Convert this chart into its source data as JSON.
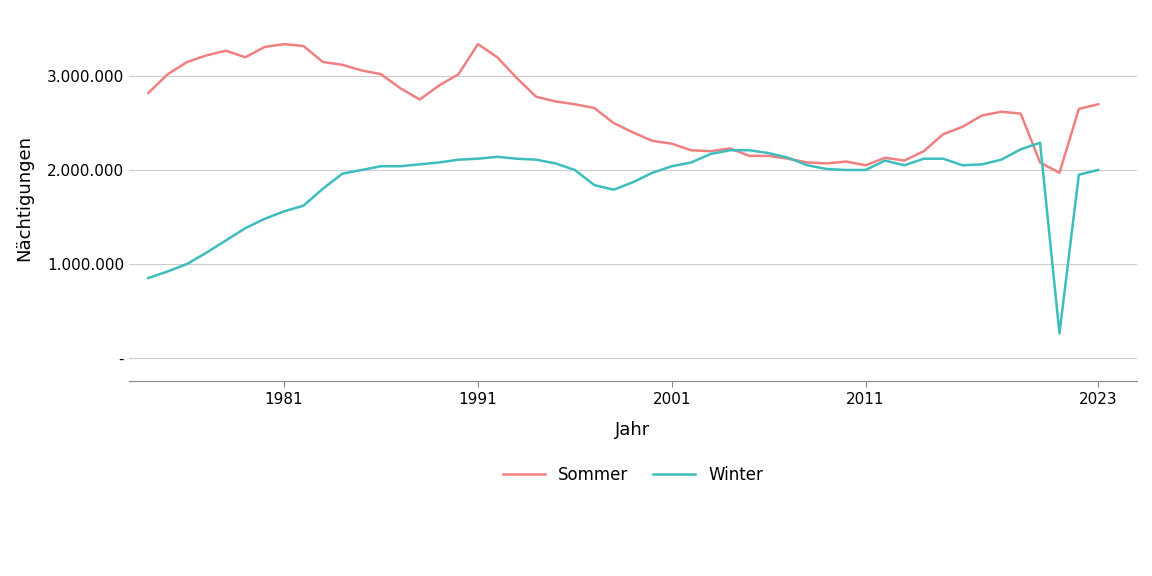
{
  "sommer_years": [
    1974,
    1975,
    1976,
    1977,
    1978,
    1979,
    1980,
    1981,
    1982,
    1983,
    1984,
    1985,
    1986,
    1987,
    1988,
    1989,
    1990,
    1991,
    1992,
    1993,
    1994,
    1995,
    1996,
    1997,
    1998,
    1999,
    2000,
    2001,
    2002,
    2003,
    2004,
    2005,
    2006,
    2007,
    2008,
    2009,
    2010,
    2011,
    2012,
    2013,
    2014,
    2015,
    2016,
    2017,
    2018,
    2019,
    2020,
    2021,
    2022,
    2023
  ],
  "sommer_values": [
    2820000,
    3020000,
    3150000,
    3220000,
    3270000,
    3200000,
    3310000,
    3340000,
    3320000,
    3150000,
    3120000,
    3060000,
    3020000,
    2870000,
    2750000,
    2900000,
    3020000,
    3340000,
    3200000,
    2980000,
    2780000,
    2730000,
    2700000,
    2660000,
    2500000,
    2400000,
    2310000,
    2280000,
    2210000,
    2200000,
    2230000,
    2150000,
    2150000,
    2120000,
    2080000,
    2070000,
    2090000,
    2050000,
    2130000,
    2100000,
    2200000,
    2380000,
    2460000,
    2580000,
    2620000,
    2600000,
    2080000,
    1970000,
    2650000,
    2700000
  ],
  "winter_years": [
    1974,
    1975,
    1976,
    1977,
    1978,
    1979,
    1980,
    1981,
    1982,
    1983,
    1984,
    1985,
    1986,
    1987,
    1988,
    1989,
    1990,
    1991,
    1992,
    1993,
    1994,
    1995,
    1996,
    1997,
    1998,
    1999,
    2000,
    2001,
    2002,
    2003,
    2004,
    2005,
    2006,
    2007,
    2008,
    2009,
    2010,
    2011,
    2012,
    2013,
    2014,
    2015,
    2016,
    2017,
    2018,
    2019,
    2020,
    2021,
    2022,
    2023
  ],
  "winter_values": [
    850000,
    920000,
    1000000,
    1120000,
    1250000,
    1380000,
    1480000,
    1560000,
    1620000,
    1800000,
    1960000,
    2000000,
    2040000,
    2040000,
    2060000,
    2080000,
    2110000,
    2120000,
    2140000,
    2120000,
    2110000,
    2070000,
    2000000,
    1840000,
    1790000,
    1870000,
    1970000,
    2040000,
    2080000,
    2170000,
    2210000,
    2210000,
    2180000,
    2130000,
    2050000,
    2010000,
    2000000,
    2000000,
    2100000,
    2050000,
    2120000,
    2120000,
    2050000,
    2060000,
    2110000,
    2220000,
    2290000,
    260000,
    1950000,
    2000000
  ],
  "sommer_color": "#F08080",
  "winter_color": "#3DBDBD",
  "xlabel": "Jahr",
  "ylabel": "Nächtigungen",
  "yticks": [
    0,
    1000000,
    2000000,
    3000000
  ],
  "ytick_labels": [
    "-",
    "1.000.000",
    "2.000.000",
    "3.000.000"
  ],
  "xticks": [
    1981,
    1991,
    2001,
    2011,
    2023
  ],
  "ylim": [
    -250000,
    3650000
  ],
  "xlim": [
    1973,
    2025
  ],
  "bg_color": "#ffffff",
  "grid_color": "#cccccc",
  "legend_labels": [
    "Sommer",
    "Winter"
  ],
  "line_width": 1.8
}
